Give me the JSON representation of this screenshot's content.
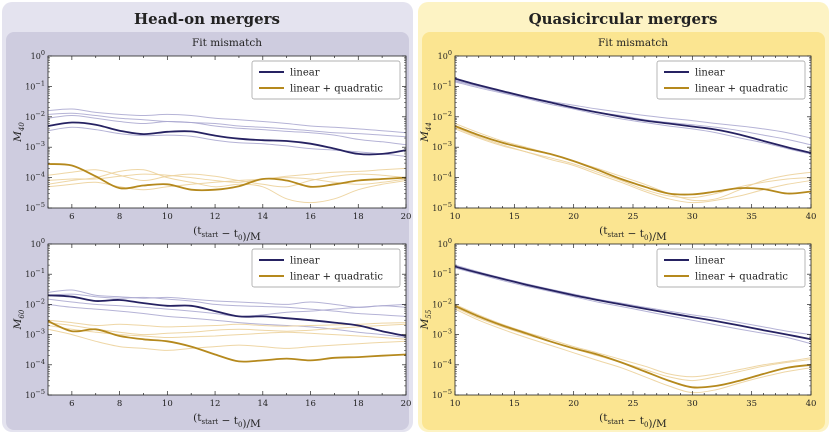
{
  "panels": [
    {
      "id": "head-on",
      "title": "Head-on mergers",
      "bg": "#e4e3ef",
      "inner": "#ceccdf"
    },
    {
      "id": "quasi",
      "title": "Quasicircular mergers",
      "bg": "#fdf3c4",
      "inner": "#fbe591"
    }
  ],
  "colors": {
    "linear": "#262262",
    "quad": "#b5891d",
    "linear_light": "#a8a6cf",
    "quad_light": "#ecd29b"
  },
  "chart_data": [
    {
      "id": "ho-40",
      "type": "line",
      "panel": "head-on",
      "title": "Fit mismatch",
      "xlabel": "(t_start − t_0)/M",
      "ylabel": "M_40",
      "xlim": [
        5,
        20
      ],
      "ylim_log10": [
        -5,
        0
      ],
      "xticks": [
        6,
        8,
        10,
        12,
        14,
        16,
        18,
        20
      ],
      "yticks": [
        "10^0",
        "10^-1",
        "10^-2",
        "10^-3",
        "10^-4",
        "10^-5"
      ],
      "legend": {
        "placement": "top-right",
        "entries": [
          "linear",
          "linear + quadratic"
        ]
      },
      "x": [
        5,
        6,
        7,
        8,
        9,
        10,
        11,
        12,
        13,
        14,
        15,
        16,
        17,
        18,
        19,
        20
      ],
      "series": [
        {
          "name": "linear",
          "style": "main",
          "values": [
            0.005,
            0.0065,
            0.0055,
            0.0035,
            0.0027,
            0.0032,
            0.0033,
            0.0024,
            0.0019,
            0.0017,
            0.0016,
            0.0013,
            0.0009,
            0.0006,
            0.0006,
            0.0008
          ]
        },
        {
          "name": "linear + quadratic",
          "style": "main",
          "values": [
            0.00028,
            0.00025,
            0.00011,
            4.5e-05,
            5.5e-05,
            6e-05,
            4e-05,
            4e-05,
            5.2e-05,
            9e-05,
            8e-05,
            5e-05,
            6e-05,
            8e-05,
            9e-05,
            0.0001
          ]
        },
        {
          "style": "faint-linear",
          "values": [
            0.016,
            0.018,
            0.014,
            0.012,
            0.011,
            0.012,
            0.011,
            0.009,
            0.008,
            0.007,
            0.006,
            0.005,
            0.0045,
            0.004,
            0.0035,
            0.003
          ]
        },
        {
          "style": "faint-linear",
          "values": [
            0.012,
            0.013,
            0.011,
            0.009,
            0.008,
            0.007,
            0.0065,
            0.006,
            0.005,
            0.0045,
            0.004,
            0.0035,
            0.003,
            0.0028,
            0.0025,
            0.0022
          ]
        },
        {
          "style": "faint-linear",
          "values": [
            0.009,
            0.011,
            0.009,
            0.007,
            0.006,
            0.007,
            0.0065,
            0.005,
            0.0042,
            0.0038,
            0.0033,
            0.003,
            0.0025,
            0.0018,
            0.0015,
            0.0012
          ]
        },
        {
          "style": "faint-linear",
          "values": [
            0.0035,
            0.0045,
            0.0038,
            0.0028,
            0.0024,
            0.0025,
            0.0023,
            0.0017,
            0.0014,
            0.0013,
            0.0011,
            0.0009,
            0.0008,
            0.0007,
            0.0006,
            0.0005
          ]
        },
        {
          "style": "faint-quad",
          "values": [
            0.00012,
            0.00015,
            0.00018,
            0.00012,
            8e-05,
            0.00011,
            0.00013,
            0.00011,
            8e-05,
            6e-05,
            5e-05,
            8e-05,
            0.00011,
            0.00013,
            0.00012,
            0.0001
          ]
        },
        {
          "style": "faint-quad",
          "values": [
            8e-05,
            9e-05,
            9e-05,
            0.00011,
            0.00013,
            0.00012,
            0.0001,
            8e-05,
            7e-05,
            9e-05,
            0.0001,
            9e-05,
            7e-05,
            6e-05,
            7e-05,
            9e-05
          ]
        },
        {
          "style": "faint-quad",
          "values": [
            6e-05,
            8e-05,
            0.0001,
            0.00016,
            0.00018,
            0.0001,
            7e-05,
            5e-05,
            6e-05,
            5e-05,
            2e-05,
            1.5e-05,
            2e-05,
            4e-05,
            6e-05,
            8e-05
          ]
        },
        {
          "style": "faint-quad",
          "values": [
            5e-05,
            6e-05,
            7e-05,
            5e-05,
            4e-05,
            5e-05,
            6e-05,
            7e-05,
            8e-05,
            9e-05,
            0.00011,
            0.00013,
            0.00015,
            0.00016,
            0.00018,
            0.0002
          ]
        }
      ]
    },
    {
      "id": "ho-60",
      "type": "line",
      "panel": "head-on",
      "title": "",
      "xlabel": "(t_start − t_0)/M",
      "ylabel": "M_60",
      "xlim": [
        5,
        20
      ],
      "ylim_log10": [
        -5,
        0
      ],
      "xticks": [
        6,
        8,
        10,
        12,
        14,
        16,
        18,
        20
      ],
      "yticks": [
        "10^0",
        "10^-1",
        "10^-2",
        "10^-3",
        "10^-4",
        "10^-5"
      ],
      "legend": {
        "placement": "top-right",
        "entries": [
          "linear",
          "linear + quadratic"
        ]
      },
      "x": [
        5,
        6,
        7,
        8,
        9,
        10,
        11,
        12,
        13,
        14,
        15,
        16,
        17,
        18,
        19,
        20
      ],
      "series": [
        {
          "name": "linear",
          "style": "main",
          "values": [
            0.02,
            0.018,
            0.013,
            0.014,
            0.011,
            0.009,
            0.009,
            0.006,
            0.004,
            0.004,
            0.0035,
            0.003,
            0.0025,
            0.002,
            0.0013,
            0.0009
          ]
        },
        {
          "name": "linear + quadratic",
          "style": "main",
          "values": [
            0.0028,
            0.0013,
            0.0015,
            0.0009,
            0.0007,
            0.0006,
            0.0004,
            0.00022,
            0.00013,
            0.00014,
            0.00016,
            0.00014,
            0.00017,
            0.00018,
            0.0002,
            0.00022
          ]
        },
        {
          "style": "faint-linear",
          "values": [
            0.025,
            0.03,
            0.02,
            0.018,
            0.016,
            0.017,
            0.015,
            0.013,
            0.012,
            0.011,
            0.01,
            0.012,
            0.01,
            0.008,
            0.009,
            0.008
          ]
        },
        {
          "style": "faint-linear",
          "values": [
            0.015,
            0.012,
            0.01,
            0.009,
            0.008,
            0.007,
            0.006,
            0.005,
            0.004,
            0.0045,
            0.0055,
            0.006,
            0.007,
            0.008,
            0.009,
            0.01
          ]
        },
        {
          "style": "faint-linear",
          "values": [
            0.01,
            0.008,
            0.007,
            0.006,
            0.005,
            0.004,
            0.0035,
            0.003,
            0.0025,
            0.0022,
            0.002,
            0.0018,
            0.0015,
            0.0012,
            0.001,
            0.0008
          ]
        },
        {
          "style": "faint-linear",
          "values": [
            0.02,
            0.022,
            0.018,
            0.016,
            0.017,
            0.015,
            0.013,
            0.01,
            0.009,
            0.0085,
            0.008,
            0.007,
            0.006,
            0.005,
            0.0045,
            0.004
          ]
        },
        {
          "style": "faint-quad",
          "values": [
            0.003,
            0.0025,
            0.002,
            0.0022,
            0.002,
            0.0018,
            0.0019,
            0.002,
            0.0022,
            0.002,
            0.0019,
            0.002,
            0.0021,
            0.0022,
            0.0024,
            0.0025
          ]
        },
        {
          "style": "faint-quad",
          "values": [
            0.002,
            0.0015,
            0.0012,
            0.001,
            0.0009,
            0.0008,
            0.00085,
            0.0009,
            0.001,
            0.0011,
            0.0012,
            0.0011,
            0.001,
            0.0009,
            0.0008,
            0.0007
          ]
        },
        {
          "style": "faint-quad",
          "values": [
            0.0015,
            0.001,
            0.0006,
            0.0004,
            0.00035,
            0.0003,
            0.00035,
            0.0004,
            0.00045,
            0.0004,
            0.00035,
            0.0004,
            0.00045,
            0.0005,
            0.00055,
            0.0006
          ]
        },
        {
          "style": "faint-quad",
          "values": [
            0.0025,
            0.002,
            0.0015,
            0.0012,
            0.001,
            0.0011,
            0.0012,
            0.0014,
            0.0015,
            0.0014,
            0.0013,
            0.0014,
            0.0016,
            0.0018,
            0.002,
            0.0022
          ]
        }
      ]
    },
    {
      "id": "qc-44",
      "type": "line",
      "panel": "quasi",
      "title": "Fit mismatch",
      "xlabel": "(t_start − t_0)/M",
      "ylabel": "M_44",
      "xlim": [
        10,
        40
      ],
      "ylim_log10": [
        -5,
        0
      ],
      "xticks": [
        10,
        15,
        20,
        25,
        30,
        35,
        40
      ],
      "yticks": [
        "10^0",
        "10^-1",
        "10^-2",
        "10^-3",
        "10^-4",
        "10^-5"
      ],
      "legend": {
        "placement": "top-right",
        "entries": [
          "linear",
          "linear + quadratic"
        ]
      },
      "x": [
        10,
        12,
        14,
        16,
        18,
        20,
        22,
        24,
        26,
        28,
        30,
        32,
        34,
        36,
        38,
        40
      ],
      "series": [
        {
          "name": "linear",
          "style": "main",
          "values": [
            0.18,
            0.11,
            0.07,
            0.045,
            0.03,
            0.02,
            0.014,
            0.01,
            0.0075,
            0.006,
            0.0048,
            0.0038,
            0.0026,
            0.0016,
            0.001,
            0.00065
          ]
        },
        {
          "name": "linear + quadratic",
          "style": "main",
          "values": [
            0.005,
            0.0025,
            0.0014,
            0.0009,
            0.0006,
            0.00035,
            0.00018,
            9e-05,
            5e-05,
            3e-05,
            2.8e-05,
            3.5e-05,
            4.5e-05,
            4.2e-05,
            3e-05,
            3.5e-05
          ]
        },
        {
          "style": "faint-linear",
          "values": [
            0.15,
            0.1,
            0.065,
            0.045,
            0.032,
            0.024,
            0.018,
            0.014,
            0.011,
            0.009,
            0.0075,
            0.006,
            0.005,
            0.004,
            0.003,
            0.002
          ]
        },
        {
          "style": "faint-linear",
          "values": [
            0.16,
            0.1,
            0.065,
            0.042,
            0.029,
            0.02,
            0.014,
            0.011,
            0.008,
            0.0065,
            0.0055,
            0.0045,
            0.0035,
            0.0025,
            0.0018,
            0.0012
          ]
        },
        {
          "style": "faint-linear",
          "values": [
            0.14,
            0.09,
            0.06,
            0.04,
            0.026,
            0.018,
            0.012,
            0.0085,
            0.0065,
            0.005,
            0.004,
            0.003,
            0.002,
            0.0014,
            0.0009,
            0.0006
          ]
        },
        {
          "style": "faint-quad",
          "values": [
            0.006,
            0.003,
            0.0016,
            0.001,
            0.0006,
            0.00035,
            0.0002,
            0.00011,
            6e-05,
            3e-05,
            1.8e-05,
            2e-05,
            4e-05,
            8e-05,
            0.00012,
            0.00015
          ]
        },
        {
          "style": "faint-quad",
          "values": [
            0.0045,
            0.0022,
            0.0012,
            0.0007,
            0.00045,
            0.00028,
            0.00015,
            8e-05,
            4e-05,
            2.5e-05,
            2.2e-05,
            3e-05,
            5e-05,
            7e-05,
            9e-05,
            0.0001
          ]
        },
        {
          "style": "faint-quad",
          "values": [
            0.004,
            0.002,
            0.0011,
            0.0007,
            0.0004,
            0.00025,
            0.00013,
            7e-05,
            3.5e-05,
            2e-05,
            1.5e-05,
            1.8e-05,
            2.5e-05,
            4e-05,
            6e-05,
            8e-05
          ]
        }
      ]
    },
    {
      "id": "qc-55",
      "type": "line",
      "panel": "quasi",
      "title": "",
      "xlabel": "(t_start − t_0)/M",
      "ylabel": "M_55",
      "xlim": [
        10,
        40
      ],
      "ylim_log10": [
        -5,
        0
      ],
      "xticks": [
        10,
        15,
        20,
        25,
        30,
        35,
        40
      ],
      "yticks": [
        "10^0",
        "10^-1",
        "10^-2",
        "10^-3",
        "10^-4",
        "10^-5"
      ],
      "legend": {
        "placement": "top-right",
        "entries": [
          "linear",
          "linear + quadratic"
        ]
      },
      "x": [
        10,
        12,
        14,
        16,
        18,
        20,
        22,
        24,
        26,
        28,
        30,
        32,
        34,
        36,
        38,
        40
      ],
      "series": [
        {
          "name": "linear",
          "style": "main",
          "values": [
            0.18,
            0.11,
            0.07,
            0.045,
            0.03,
            0.02,
            0.014,
            0.01,
            0.0072,
            0.0052,
            0.0038,
            0.0028,
            0.002,
            0.0014,
            0.001,
            0.0007
          ]
        },
        {
          "name": "linear + quadratic",
          "style": "main",
          "values": [
            0.009,
            0.004,
            0.002,
            0.0011,
            0.0006,
            0.00035,
            0.00022,
            0.00012,
            6e-05,
            3e-05,
            1.8e-05,
            2e-05,
            3e-05,
            5e-05,
            8e-05,
            0.0001
          ]
        },
        {
          "style": "faint-linear",
          "values": [
            0.2,
            0.12,
            0.075,
            0.048,
            0.032,
            0.022,
            0.015,
            0.011,
            0.008,
            0.006,
            0.0045,
            0.0035,
            0.0025,
            0.0018,
            0.0013,
            0.001
          ]
        },
        {
          "style": "faint-linear",
          "values": [
            0.16,
            0.1,
            0.062,
            0.04,
            0.027,
            0.018,
            0.012,
            0.0085,
            0.006,
            0.0042,
            0.003,
            0.0021,
            0.0015,
            0.0011,
            0.0008,
            0.0005
          ]
        },
        {
          "style": "faint-quad",
          "values": [
            0.01,
            0.0045,
            0.0022,
            0.0012,
            0.0007,
            0.0004,
            0.00025,
            0.00015,
            9e-05,
            5e-05,
            4e-05,
            5e-05,
            7e-05,
            0.0001,
            0.00013,
            0.00017
          ]
        },
        {
          "style": "faint-quad",
          "values": [
            0.008,
            0.0035,
            0.0018,
            0.001,
            0.0006,
            0.00035,
            0.0002,
            0.00012,
            7e-05,
            4e-05,
            3e-05,
            4e-05,
            6e-05,
            9e-05,
            0.00012,
            0.00015
          ]
        },
        {
          "style": "faint-quad",
          "values": [
            0.007,
            0.003,
            0.0015,
            0.0008,
            0.00045,
            0.00025,
            0.00014,
            8e-05,
            4e-05,
            2e-05,
            1.2e-05,
            1.5e-05,
            2.5e-05,
            4e-05,
            6e-05,
            8e-05
          ]
        }
      ]
    }
  ]
}
